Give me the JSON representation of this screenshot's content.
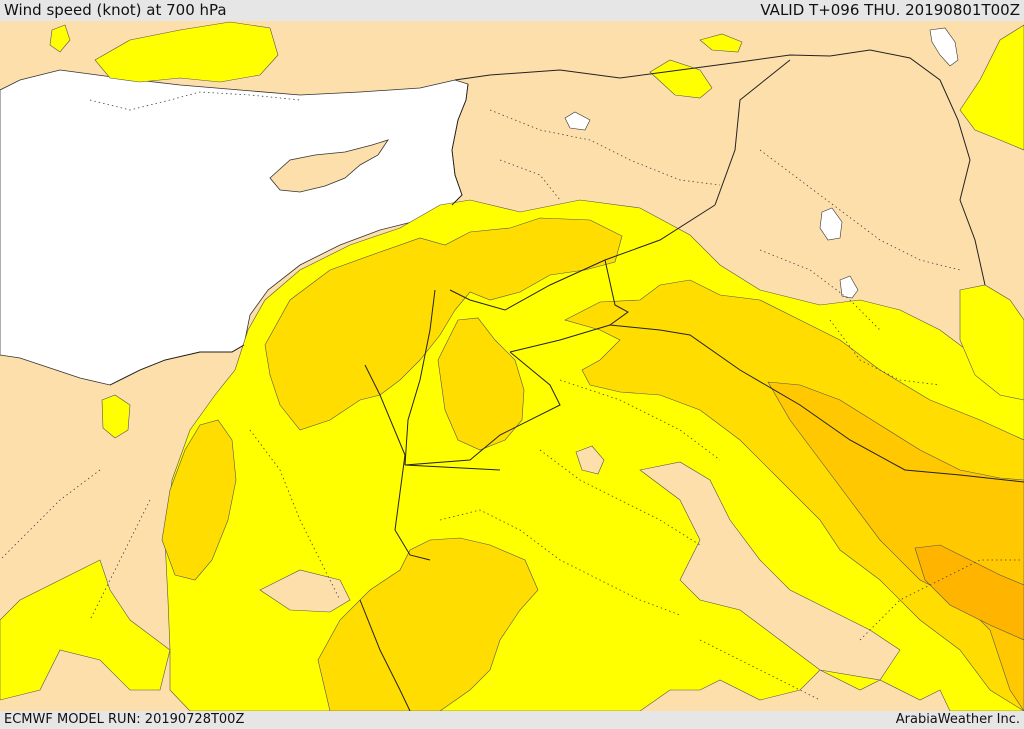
{
  "header": {
    "title": "Wind speed (knot) at 700 hPa",
    "valid": "VALID T+096 THU. 20190801T00Z"
  },
  "footer": {
    "model_run": "ECMWF MODEL RUN: 20190728T00Z",
    "credit": "ArabiaWeather Inc."
  },
  "map": {
    "variable": "wind speed",
    "unit": "knot",
    "level": "700 hPa",
    "colors": {
      "land_low": "#fddfab",
      "sea": "#ffffff",
      "wind_band_1": "#ffff00",
      "wind_band_2": "#ffdd00",
      "wind_band_3": "#ffc800",
      "wind_band_4": "#ffb400",
      "bar_background": "#e6e6e6"
    }
  }
}
